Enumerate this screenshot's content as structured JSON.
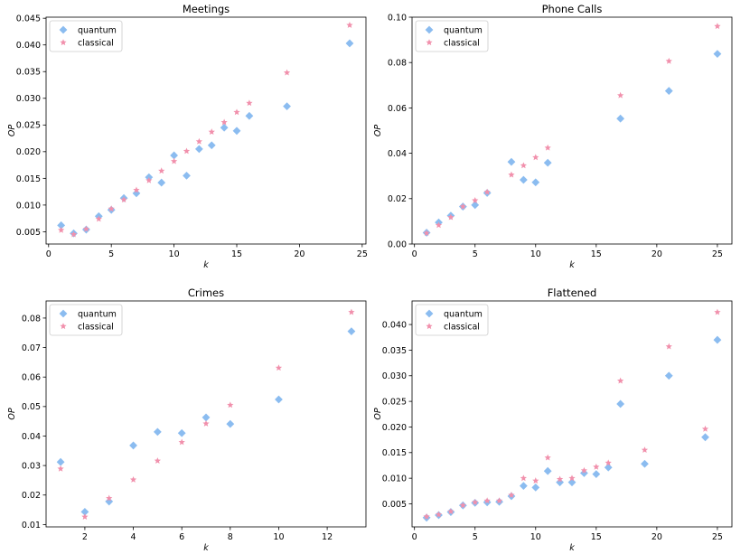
{
  "colors": {
    "quantum": "#8bbcf0",
    "classical": "#f190ac",
    "axis": "#000000"
  },
  "chart_data": [
    {
      "type": "scatter",
      "title": "Meetings",
      "xlabel": "k",
      "ylabel": "OP",
      "xlim": [
        -0.2,
        25.3
      ],
      "ylim": [
        0.0027,
        0.0452
      ],
      "xticks": [
        0,
        5,
        10,
        15,
        20,
        25
      ],
      "yticks": [
        0.005,
        0.01,
        0.015,
        0.02,
        0.025,
        0.03,
        0.035,
        0.04,
        0.045
      ],
      "ydecimals": 3,
      "legend": "top-left",
      "series": [
        {
          "name": "quantum",
          "marker": "diamond",
          "x": [
            1,
            2,
            3,
            4,
            5,
            6,
            7,
            8,
            9,
            10,
            11,
            12,
            13,
            14,
            15,
            16,
            19,
            24
          ],
          "y": [
            0.0062,
            0.0047,
            0.0054,
            0.0079,
            0.0091,
            0.0113,
            0.0122,
            0.0152,
            0.0142,
            0.0193,
            0.0155,
            0.0205,
            0.0212,
            0.0245,
            0.0239,
            0.0267,
            0.0285,
            0.0403
          ]
        },
        {
          "name": "classical",
          "marker": "star",
          "x": [
            1,
            2,
            3,
            4,
            5,
            6,
            7,
            8,
            9,
            10,
            11,
            12,
            13,
            14,
            15,
            16,
            19,
            24
          ],
          "y": [
            0.0053,
            0.0045,
            0.0055,
            0.0074,
            0.0093,
            0.011,
            0.0128,
            0.0146,
            0.0164,
            0.0182,
            0.0201,
            0.0219,
            0.0237,
            0.0255,
            0.0274,
            0.0291,
            0.0348,
            0.0437
          ]
        }
      ]
    },
    {
      "type": "scatter",
      "title": "Phone Calls",
      "xlabel": "k",
      "ylabel": "OP",
      "xlim": [
        -0.2,
        26.2
      ],
      "ylim": [
        0.0,
        0.1
      ],
      "xticks": [
        0,
        5,
        10,
        15,
        20,
        25
      ],
      "yticks": [
        0.0,
        0.02,
        0.04,
        0.06,
        0.08,
        0.1
      ],
      "ydecimals": 2,
      "legend": "top-left",
      "series": [
        {
          "name": "quantum",
          "marker": "diamond",
          "x": [
            1,
            2,
            3,
            4,
            5,
            6,
            8,
            9,
            10,
            11,
            17,
            21,
            25
          ],
          "y": [
            0.005,
            0.0095,
            0.0125,
            0.0165,
            0.0172,
            0.0225,
            0.0362,
            0.0283,
            0.0272,
            0.0358,
            0.0553,
            0.0675,
            0.0838
          ]
        },
        {
          "name": "classical",
          "marker": "star",
          "x": [
            1,
            2,
            3,
            4,
            5,
            6,
            8,
            9,
            10,
            11,
            17,
            21,
            25
          ],
          "y": [
            0.0048,
            0.0083,
            0.0118,
            0.0165,
            0.0192,
            0.0229,
            0.0305,
            0.0346,
            0.0382,
            0.0424,
            0.0655,
            0.0806,
            0.096
          ]
        }
      ]
    },
    {
      "type": "scatter",
      "title": "Crimes",
      "xlabel": "k",
      "ylabel": "OP",
      "xlim": [
        0.4,
        13.6
      ],
      "ylim": [
        0.0092,
        0.0858
      ],
      "xticks": [
        2,
        4,
        6,
        8,
        10,
        12
      ],
      "yticks": [
        0.01,
        0.02,
        0.03,
        0.04,
        0.05,
        0.06,
        0.07,
        0.08
      ],
      "ydecimals": 2,
      "legend": "top-left",
      "series": [
        {
          "name": "quantum",
          "marker": "diamond",
          "x": [
            1,
            2,
            3,
            4,
            5,
            6,
            7,
            8,
            10,
            13
          ],
          "y": [
            0.0312,
            0.0143,
            0.0178,
            0.0368,
            0.0414,
            0.041,
            0.0463,
            0.0441,
            0.0524,
            0.0755
          ]
        },
        {
          "name": "classical",
          "marker": "star",
          "x": [
            1,
            2,
            3,
            4,
            5,
            6,
            7,
            8,
            10,
            13
          ],
          "y": [
            0.0289,
            0.0126,
            0.0189,
            0.0252,
            0.0316,
            0.0379,
            0.0442,
            0.0505,
            0.0631,
            0.082
          ]
        }
      ]
    },
    {
      "type": "scatter",
      "title": "Flattened",
      "xlabel": "k",
      "ylabel": "OP",
      "xlim": [
        -0.2,
        26.2
      ],
      "ylim": [
        0.0005,
        0.0446
      ],
      "xticks": [
        0,
        5,
        10,
        15,
        20,
        25
      ],
      "yticks": [
        0.005,
        0.01,
        0.015,
        0.02,
        0.025,
        0.03,
        0.035,
        0.04
      ],
      "ydecimals": 3,
      "legend": "top-left",
      "series": [
        {
          "name": "quantum",
          "marker": "diamond",
          "x": [
            1,
            2,
            3,
            4,
            5,
            6,
            7,
            8,
            9,
            10,
            11,
            12,
            13,
            14,
            15,
            16,
            17,
            19,
            21,
            24,
            25
          ],
          "y": [
            0.0023,
            0.0028,
            0.0034,
            0.0047,
            0.0052,
            0.0053,
            0.0054,
            0.0065,
            0.0085,
            0.0082,
            0.0114,
            0.0092,
            0.0092,
            0.011,
            0.0108,
            0.0121,
            0.0245,
            0.0128,
            0.03,
            0.018,
            0.037
          ]
        },
        {
          "name": "classical",
          "marker": "star",
          "x": [
            1,
            2,
            3,
            4,
            5,
            6,
            7,
            8,
            9,
            10,
            11,
            12,
            13,
            14,
            15,
            16,
            17,
            19,
            21,
            24,
            25
          ],
          "y": [
            0.0025,
            0.0029,
            0.0035,
            0.0047,
            0.0053,
            0.0056,
            0.0056,
            0.0067,
            0.01,
            0.0095,
            0.014,
            0.0098,
            0.01,
            0.0115,
            0.0122,
            0.013,
            0.029,
            0.0155,
            0.0357,
            0.0196,
            0.0424
          ]
        }
      ]
    }
  ]
}
